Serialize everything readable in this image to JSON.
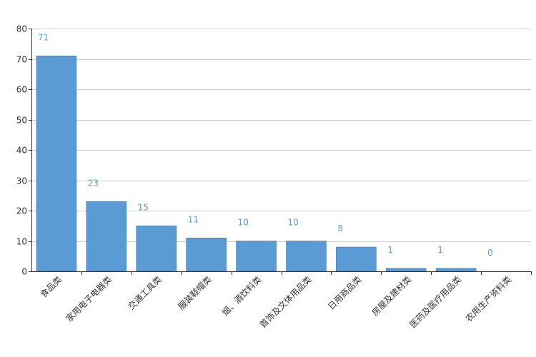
{
  "chart_data": {
    "type": "bar",
    "title": "",
    "xlabel": "",
    "ylabel": "",
    "categories": [
      "食品类",
      "家用电子电器类",
      "交通工具类",
      "服装鞋帽类",
      "烟、酒饮料类",
      "首饰及文体用品类",
      "日用商品类",
      "房屋及建材类",
      "医药及医疗用品类",
      "农用生产资料类"
    ],
    "values": [
      71,
      23,
      15,
      11,
      10,
      10,
      8,
      1,
      1,
      0
    ],
    "ylim": [
      0,
      80
    ],
    "yticks": [
      0,
      10,
      20,
      30,
      40,
      50,
      60,
      70,
      80
    ],
    "grid": true,
    "legend": "none",
    "bar_color": "#5b9bd5",
    "label_color": "#5b9bd5"
  }
}
